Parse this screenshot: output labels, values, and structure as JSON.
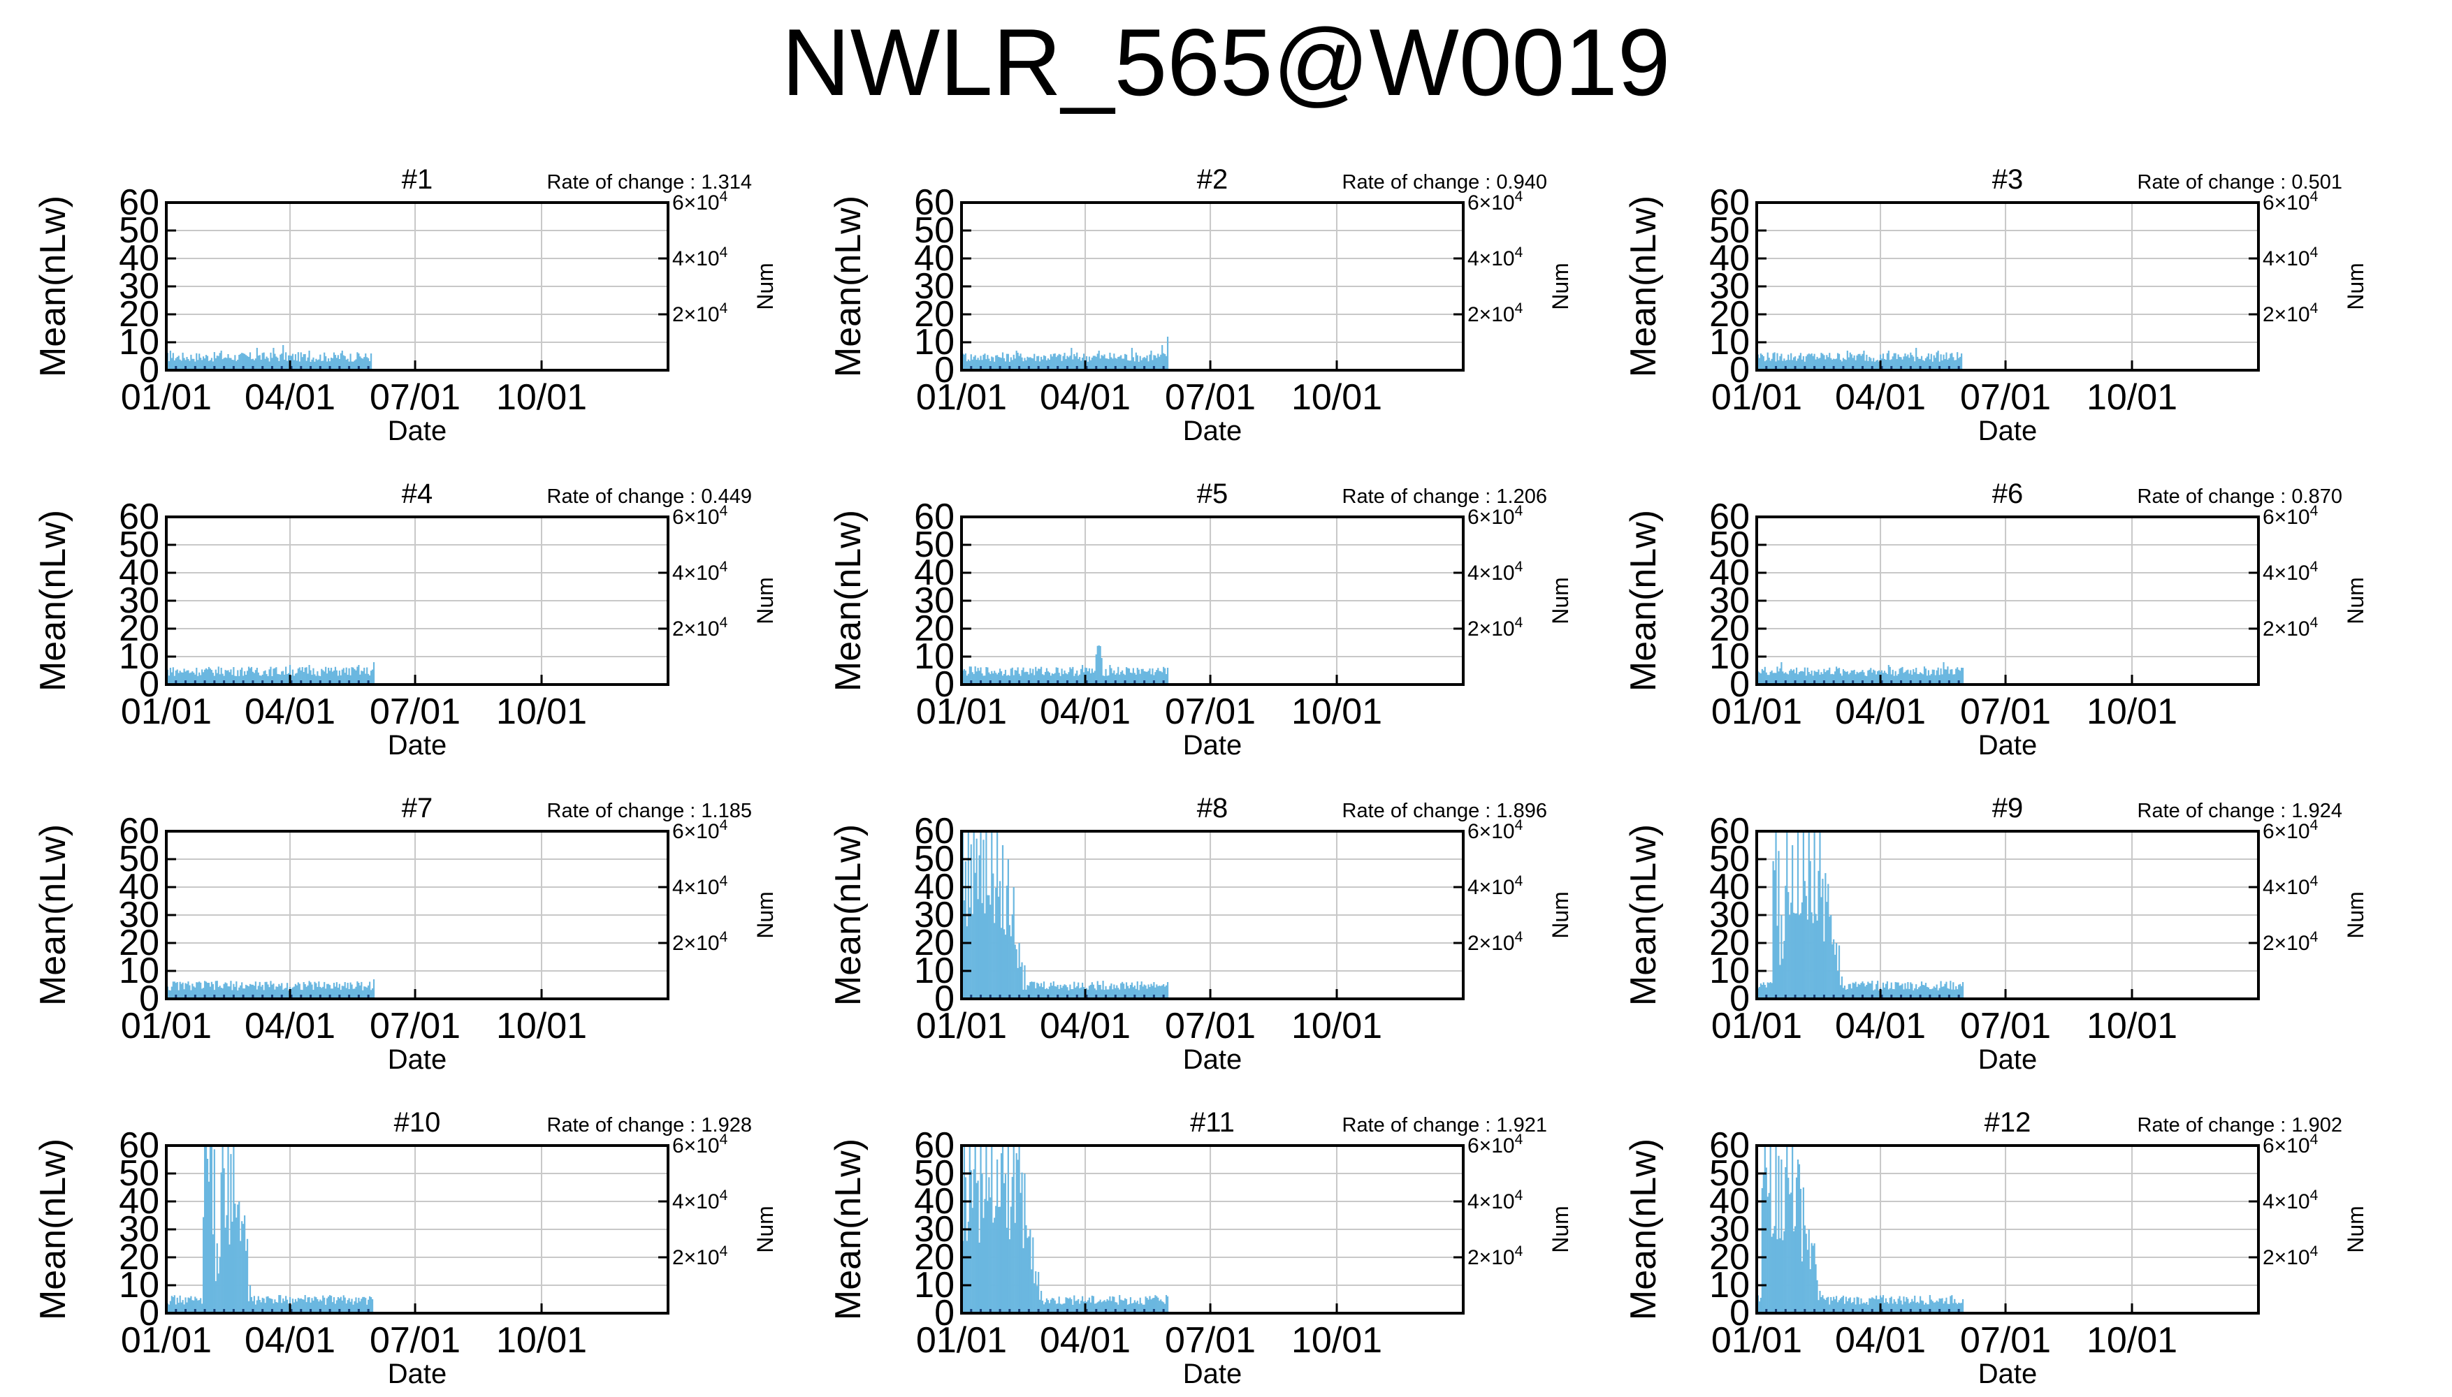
{
  "page": {
    "title": "NWLR_565@W0019"
  },
  "axes_common": {
    "ylabel": "Mean(nLw)",
    "xlabel": "Date",
    "y2label": "Num",
    "yticks": [
      "0",
      "10",
      "20",
      "30",
      "40",
      "50",
      "60"
    ],
    "xtick_labels": [
      "01/01",
      "04/01",
      "07/01",
      "10/01"
    ],
    "y2ticks": [
      {
        "base": "2×10",
        "exp": "4"
      },
      {
        "base": "4×10",
        "exp": "4"
      },
      {
        "base": "6×10",
        "exp": "4"
      }
    ],
    "rate_prefix": "Rate of change : ",
    "colors": {
      "series": "#6ab7e0",
      "axis": "#000000",
      "grid": "#c8c8c8"
    }
  },
  "chart_data": [
    {
      "type": "bar",
      "title": "#1",
      "rate_of_change": "1.314",
      "xlim": [
        0,
        365
      ],
      "ylim": [
        0,
        60
      ],
      "y2lim": [
        0,
        60000
      ],
      "grid": true,
      "peaks": [
        [
          3,
          7
        ],
        [
          40,
          7
        ],
        [
          66,
          8
        ],
        [
          78,
          8
        ],
        [
          85,
          9
        ],
        [
          104,
          7
        ],
        [
          128,
          7
        ],
        [
          140,
          6
        ],
        [
          149,
          6
        ]
      ]
    },
    {
      "type": "bar",
      "title": "#2",
      "rate_of_change": "0.940",
      "xlim": [
        0,
        365
      ],
      "ylim": [
        0,
        60
      ],
      "y2lim": [
        0,
        60000
      ],
      "grid": true,
      "peaks": [
        [
          3,
          6
        ],
        [
          40,
          7
        ],
        [
          68,
          6
        ],
        [
          80,
          8
        ],
        [
          100,
          7
        ],
        [
          124,
          8
        ],
        [
          138,
          7
        ],
        [
          146,
          9
        ],
        [
          150,
          12
        ]
      ]
    },
    {
      "type": "bar",
      "title": "#3",
      "rate_of_change": "0.501",
      "xlim": [
        0,
        365
      ],
      "ylim": [
        0,
        60
      ],
      "y2lim": [
        0,
        60000
      ],
      "grid": true,
      "peaks": [
        [
          3,
          6
        ],
        [
          40,
          6
        ],
        [
          66,
          7
        ],
        [
          78,
          7
        ],
        [
          96,
          7
        ],
        [
          108,
          6
        ],
        [
          116,
          8
        ],
        [
          132,
          7
        ],
        [
          149,
          6
        ]
      ]
    },
    {
      "type": "bar",
      "title": "#4",
      "rate_of_change": "0.449",
      "xlim": [
        0,
        365
      ],
      "ylim": [
        0,
        60
      ],
      "y2lim": [
        0,
        60000
      ],
      "grid": true,
      "peaks": [
        [
          3,
          6
        ],
        [
          40,
          6
        ],
        [
          66,
          6
        ],
        [
          90,
          7
        ],
        [
          104,
          7
        ],
        [
          120,
          6
        ],
        [
          140,
          7
        ],
        [
          151,
          8
        ]
      ]
    },
    {
      "type": "bar",
      "title": "#5",
      "rate_of_change": "1.206",
      "xlim": [
        0,
        365
      ],
      "ylim": [
        0,
        60
      ],
      "y2lim": [
        0,
        60000
      ],
      "grid": true,
      "peaks": [
        [
          3,
          5
        ],
        [
          40,
          5
        ],
        [
          70,
          6
        ],
        [
          88,
          7
        ],
        [
          100,
          14
        ],
        [
          108,
          7
        ],
        [
          128,
          6
        ],
        [
          150,
          6
        ]
      ]
    },
    {
      "type": "bar",
      "title": "#6",
      "rate_of_change": "0.870",
      "xlim": [
        0,
        365
      ],
      "ylim": [
        0,
        60
      ],
      "y2lim": [
        0,
        60000
      ],
      "grid": true,
      "peaks": [
        [
          3,
          4
        ],
        [
          18,
          8
        ],
        [
          40,
          5
        ],
        [
          70,
          5
        ],
        [
          96,
          7
        ],
        [
          116,
          6
        ],
        [
          136,
          8
        ],
        [
          150,
          6
        ]
      ]
    },
    {
      "type": "bar",
      "title": "#7",
      "rate_of_change": "1.185",
      "xlim": [
        0,
        365
      ],
      "ylim": [
        0,
        60
      ],
      "y2lim": [
        0,
        60000
      ],
      "grid": true,
      "peaks": [
        [
          3,
          3
        ],
        [
          40,
          4
        ],
        [
          70,
          5
        ],
        [
          100,
          6
        ],
        [
          130,
          6
        ],
        [
          151,
          7
        ]
      ]
    },
    {
      "type": "bar",
      "title": "#8",
      "rate_of_change": "1.896",
      "xlim": [
        0,
        365
      ],
      "ylim": [
        0,
        60
      ],
      "y2lim": [
        0,
        60000
      ],
      "grid": true,
      "peaks": [
        [
          1,
          60
        ],
        [
          5,
          60
        ],
        [
          9,
          60
        ],
        [
          14,
          60
        ],
        [
          18,
          60
        ],
        [
          22,
          60
        ],
        [
          26,
          60
        ],
        [
          30,
          55
        ],
        [
          34,
          50
        ],
        [
          38,
          40
        ],
        [
          42,
          20
        ],
        [
          46,
          12
        ],
        [
          50,
          6
        ],
        [
          70,
          5
        ],
        [
          100,
          5
        ],
        [
          130,
          5
        ],
        [
          150,
          6
        ]
      ]
    },
    {
      "type": "bar",
      "title": "#9",
      "rate_of_change": "1.924",
      "xlim": [
        0,
        365
      ],
      "ylim": [
        0,
        60
      ],
      "y2lim": [
        0,
        60000
      ],
      "grid": true,
      "peaks": [
        [
          14,
          60
        ],
        [
          18,
          30
        ],
        [
          22,
          60
        ],
        [
          26,
          55
        ],
        [
          30,
          60
        ],
        [
          34,
          60
        ],
        [
          38,
          60
        ],
        [
          42,
          60
        ],
        [
          46,
          60
        ],
        [
          50,
          45
        ],
        [
          54,
          30
        ],
        [
          58,
          20
        ],
        [
          62,
          8
        ],
        [
          80,
          5
        ],
        [
          110,
          6
        ],
        [
          150,
          6
        ]
      ]
    },
    {
      "type": "bar",
      "title": "#10",
      "rate_of_change": "1.928",
      "xlim": [
        0,
        365
      ],
      "ylim": [
        0,
        60
      ],
      "y2lim": [
        0,
        60000
      ],
      "grid": true,
      "peaks": [
        [
          29,
          60
        ],
        [
          33,
          60
        ],
        [
          37,
          25
        ],
        [
          41,
          60
        ],
        [
          45,
          60
        ],
        [
          49,
          60
        ],
        [
          53,
          40
        ],
        [
          57,
          35
        ],
        [
          61,
          10
        ],
        [
          80,
          4
        ],
        [
          110,
          5
        ],
        [
          150,
          5
        ]
      ]
    },
    {
      "type": "bar",
      "title": "#11",
      "rate_of_change": "1.921",
      "xlim": [
        0,
        365
      ],
      "ylim": [
        0,
        60
      ],
      "y2lim": [
        0,
        60000
      ],
      "grid": true,
      "peaks": [
        [
          2,
          60
        ],
        [
          6,
          60
        ],
        [
          10,
          60
        ],
        [
          14,
          60
        ],
        [
          18,
          60
        ],
        [
          22,
          60
        ],
        [
          26,
          55
        ],
        [
          30,
          60
        ],
        [
          34,
          60
        ],
        [
          38,
          60
        ],
        [
          42,
          60
        ],
        [
          46,
          50
        ],
        [
          50,
          30
        ],
        [
          54,
          15
        ],
        [
          58,
          8
        ],
        [
          80,
          5
        ],
        [
          110,
          6
        ],
        [
          150,
          6
        ]
      ]
    },
    {
      "type": "bar",
      "title": "#12",
      "rate_of_change": "1.902",
      "xlim": [
        0,
        365
      ],
      "ylim": [
        0,
        60
      ],
      "y2lim": [
        0,
        60000
      ],
      "grid": true,
      "peaks": [
        [
          6,
          60
        ],
        [
          10,
          60
        ],
        [
          14,
          60
        ],
        [
          18,
          55
        ],
        [
          22,
          60
        ],
        [
          26,
          60
        ],
        [
          30,
          55
        ],
        [
          34,
          45
        ],
        [
          38,
          30
        ],
        [
          42,
          25
        ],
        [
          46,
          8
        ],
        [
          70,
          4
        ],
        [
          100,
          5
        ],
        [
          150,
          5
        ]
      ]
    }
  ]
}
